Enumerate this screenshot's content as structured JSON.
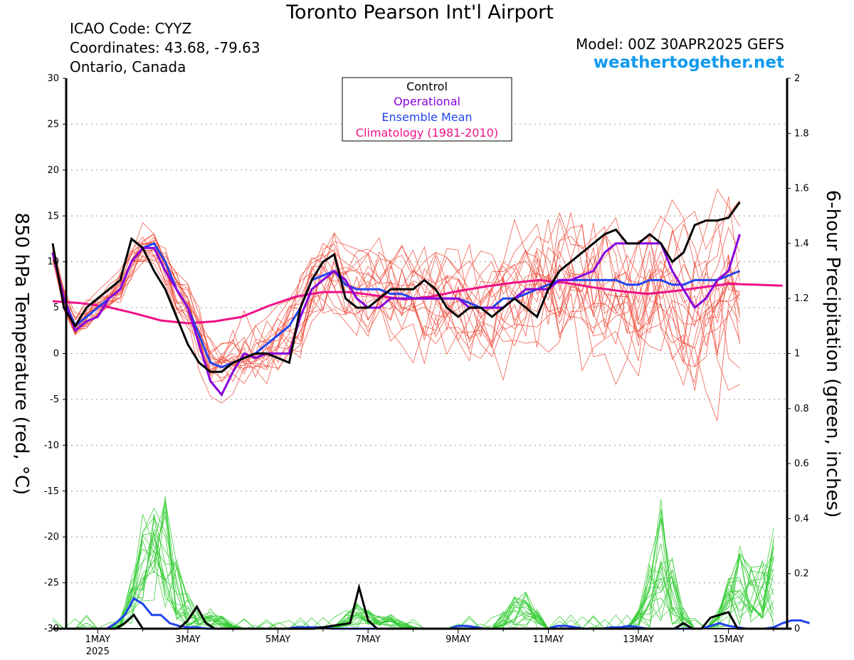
{
  "header": {
    "title": "Toronto Pearson Int'l Airport",
    "icao": "ICAO Code: CYYZ",
    "coordinates": "Coordinates: 43.68, -79.63",
    "region": "Ontario, Canada",
    "model": "Model: 00Z 30APR2025 GEFS",
    "site": "weathertogether.net"
  },
  "colors": {
    "control": "#000000",
    "operational": "#8800dd",
    "ensemble_mean": "#2244ee",
    "climatology": "#ee1188",
    "members_temp": "#ee4433",
    "members_precip": "#33cc33",
    "site": "#1199ee"
  },
  "chart_data": {
    "type": "line",
    "x_unit": "days since 00Z 30APR2025",
    "x_tick_labels": [
      {
        "x": 1,
        "label": "1MAY",
        "sub": "2025"
      },
      {
        "x": 3,
        "label": "3MAY",
        "sub": ""
      },
      {
        "x": 5,
        "label": "5MAY",
        "sub": ""
      },
      {
        "x": 7,
        "label": "7MAY",
        "sub": ""
      },
      {
        "x": 9,
        "label": "9MAY",
        "sub": ""
      },
      {
        "x": 11,
        "label": "11MAY",
        "sub": ""
      },
      {
        "x": 13,
        "label": "13MAY",
        "sub": ""
      },
      {
        "x": 15,
        "label": "15MAY",
        "sub": ""
      }
    ],
    "xlim": [
      0.3,
      16.3
    ],
    "ylim_left": [
      -30,
      30
    ],
    "yticks_left": [
      -30,
      -25,
      -20,
      -15,
      -10,
      -5,
      0,
      5,
      10,
      15,
      20,
      25,
      30
    ],
    "ylabel_left": "850 hPa Temperature (red, °C)",
    "ylim_right": [
      0,
      2
    ],
    "yticks_right": [
      0,
      0.2,
      0.4,
      0.6,
      0.8,
      1,
      1.2,
      1.4,
      1.6,
      1.8,
      2
    ],
    "ylabel_right": "6-hour Precipitation (green, inches)",
    "grid": "horizontal dotted",
    "legend": {
      "position": "top-center",
      "entries": [
        "Control",
        "Operational",
        "Ensemble Mean",
        "Climatology (1981-2010)"
      ]
    },
    "x_step_days": 0.25,
    "temperature": {
      "control": [
        12,
        5,
        3,
        5,
        6,
        7,
        8,
        12.5,
        11.5,
        9,
        7,
        4,
        1,
        -1,
        -2,
        -2,
        -1,
        -0.5,
        0,
        0,
        -0.5,
        -1,
        5,
        8,
        10,
        10.8,
        6,
        5,
        5,
        6,
        7,
        7,
        7,
        8,
        7,
        5,
        4,
        5,
        5,
        4,
        5,
        6,
        5,
        4,
        7,
        9,
        10,
        11,
        12,
        13,
        13.5,
        12,
        12,
        13,
        12,
        10,
        11,
        14,
        14.5,
        14.5,
        14.8,
        16.5
      ],
      "operational": [
        11,
        6,
        2.5,
        3.5,
        4,
        6,
        7,
        10,
        11.5,
        11.5,
        9,
        7,
        5,
        1,
        -3,
        -4.5,
        -2,
        0,
        -0.5,
        0,
        0,
        0,
        4,
        7,
        8,
        9,
        8,
        6,
        5,
        5,
        6,
        6,
        6,
        6,
        6,
        6,
        6,
        5,
        5,
        5,
        5,
        6,
        7,
        7,
        7,
        8,
        8,
        8.5,
        9,
        11,
        12,
        12,
        12,
        12,
        12,
        9,
        7,
        5,
        6,
        8,
        9,
        13
      ],
      "ensemble_mean": [
        11,
        6,
        3,
        4,
        5,
        6,
        7,
        10,
        11.5,
        12,
        10,
        7,
        5,
        2,
        -1,
        -1.5,
        -1,
        -0.5,
        0,
        1,
        2,
        3,
        5,
        8,
        8.5,
        9,
        7.5,
        7,
        7,
        7,
        6.5,
        6.5,
        6,
        6,
        6,
        6,
        6,
        5.5,
        5,
        5,
        6,
        6,
        6.5,
        7,
        7.5,
        8,
        8,
        8,
        8,
        8,
        8,
        7.5,
        7.5,
        8,
        8,
        7.5,
        7.5,
        8,
        8,
        8,
        8.5,
        9
      ],
      "climatology": [
        5.7,
        5.5,
        5.1,
        4.4,
        3.6,
        3.3,
        3.5,
        4,
        5.2,
        6.2,
        6.7,
        6.7,
        6.3,
        5.9,
        6.2,
        6.8,
        7.3,
        7.7,
        8,
        7.7,
        7.2,
        6.8,
        6.5,
        6.8,
        7.2,
        7.6,
        7.5,
        7.4
      ],
      "climatology_x_step_days": 0.6,
      "member_offsets_seed": 7
    },
    "precipitation": {
      "control": [
        0,
        0,
        0,
        0,
        0,
        0,
        0,
        0,
        0.02,
        0.05,
        0.0,
        0,
        0,
        0,
        0,
        0.03,
        0.08,
        0.02,
        0,
        0,
        0,
        0,
        0,
        0,
        0,
        0,
        0,
        0,
        0,
        0,
        0.005,
        0.01,
        0.015,
        0.02,
        0.15,
        0.03,
        0,
        0,
        0,
        0,
        0,
        0,
        0,
        0,
        0,
        0,
        0,
        0,
        0,
        0,
        0,
        0,
        0,
        0,
        0,
        0,
        0,
        0,
        0,
        0,
        0.0,
        0.0,
        0.0,
        0,
        0,
        0,
        0,
        0,
        0,
        0,
        0.02,
        0.0,
        0.0,
        0.04,
        0.05,
        0.06,
        0,
        0,
        0,
        0,
        0,
        0,
        0
      ],
      "ensemble_mean": [
        0,
        0,
        0,
        0,
        0,
        0,
        0,
        0.02,
        0.05,
        0.11,
        0.09,
        0.05,
        0.05,
        0.02,
        0.01,
        0.005,
        0.005,
        0,
        0,
        0,
        0,
        0,
        0,
        0,
        0,
        0,
        0,
        0.005,
        0.005,
        0.005,
        0.005,
        0,
        0,
        0,
        0,
        0,
        0,
        0,
        0,
        0,
        0,
        0,
        0,
        0,
        0,
        0.01,
        0.01,
        0.005,
        0,
        0,
        0,
        0,
        0,
        0,
        0,
        0,
        0.01,
        0.01,
        0.005,
        0,
        0,
        0,
        0.005,
        0.005,
        0.01,
        0.005,
        0,
        0,
        0,
        0,
        0,
        0,
        0,
        0.01,
        0.02,
        0.01,
        0.005,
        0,
        0,
        0,
        0.005,
        0.02,
        0.03,
        0.03,
        0.02
      ],
      "member_peaks": [
        {
          "x": 2.0,
          "v": 0.25
        },
        {
          "x": 2.25,
          "v": 0.3
        },
        {
          "x": 2.55,
          "v": 0.42
        },
        {
          "x": 3.5,
          "v": 0.08
        },
        {
          "x": 6.8,
          "v": 0.1
        },
        {
          "x": 7.5,
          "v": 0.05
        },
        {
          "x": 10.4,
          "v": 0.17
        },
        {
          "x": 13.5,
          "v": 0.44
        },
        {
          "x": 15.25,
          "v": 0.32
        },
        {
          "x": 16.0,
          "v": 0.38
        }
      ]
    }
  }
}
